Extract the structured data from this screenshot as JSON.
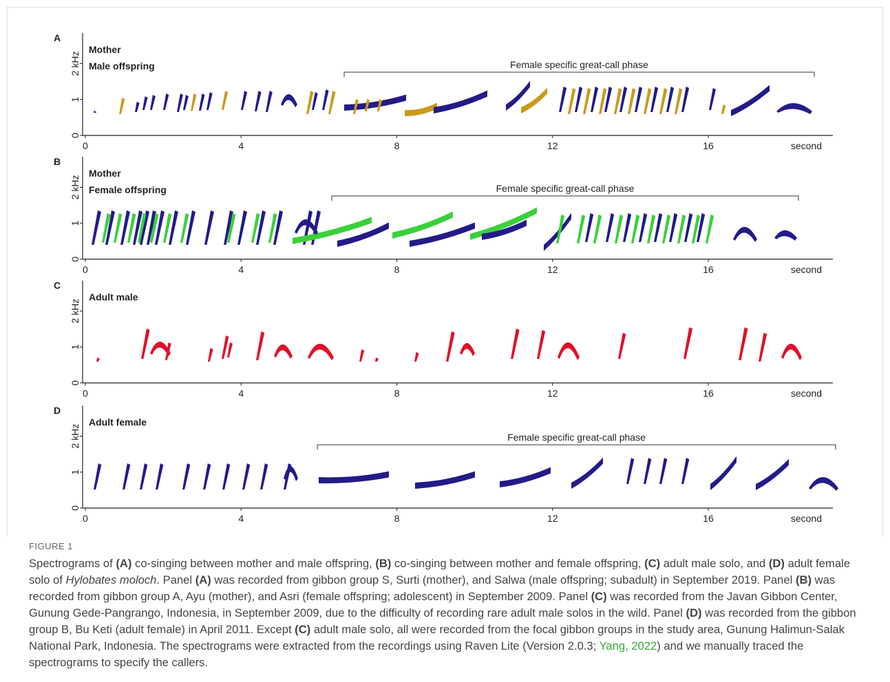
{
  "figure": {
    "panels": [
      {
        "letter": "A",
        "legend": [
          {
            "name": "Mother",
            "color": "#231b88"
          },
          {
            "name": "Male offspring",
            "color": "#c99a1c"
          }
        ],
        "phase_label": "Female specific great-call phase",
        "xlim": [
          -0.07,
          19.2
        ],
        "xticks": [
          0,
          4,
          8,
          12,
          16
        ],
        "x_unit": "second",
        "ylim": [
          0,
          2.85
        ],
        "yticks": [
          0,
          1,
          {
            "value": 2,
            "label": "2 kHz"
          }
        ]
      },
      {
        "letter": "B",
        "legend": [
          {
            "name": "Mother",
            "color": "#231b88"
          },
          {
            "name": "Female offspring",
            "color": "#3bd03b"
          }
        ],
        "phase_label": "Female specific great-call phase",
        "xlim": [
          -0.07,
          19.2
        ],
        "xticks": [
          0,
          4,
          8,
          12,
          16
        ],
        "x_unit": "second",
        "ylim": [
          0,
          2.85
        ],
        "yticks": [
          0,
          1,
          {
            "value": 2,
            "label": "2 kHz"
          }
        ]
      },
      {
        "letter": "C",
        "legend": [
          {
            "name": "Adult male",
            "color": "#e0102a"
          }
        ],
        "xlim": [
          -0.07,
          19.2
        ],
        "xticks": [
          0,
          4,
          8,
          12,
          16
        ],
        "x_unit": "second",
        "ylim": [
          0,
          2.85
        ],
        "yticks": [
          0,
          1,
          {
            "value": 2,
            "label": "2 kHz"
          }
        ]
      },
      {
        "letter": "D",
        "legend": [
          {
            "name": "Adult female",
            "color": "#231b88"
          }
        ],
        "phase_label": "Female specific great-call phase",
        "xlim": [
          -0.07,
          19.2
        ],
        "xticks": [
          0,
          4,
          8,
          12,
          16
        ],
        "x_unit": "second",
        "ylim": [
          0,
          2.85
        ],
        "yticks": [
          0,
          1,
          {
            "value": 2,
            "label": "2 kHz"
          }
        ]
      }
    ],
    "caption": {
      "label": "FIGURE 1",
      "runs": [
        "Spectrograms of ",
        "(A)",
        " co-singing between mother and male offspring, ",
        "(B)",
        " co-singing between mother and female offspring, ",
        "(C)",
        " adult male solo, and ",
        "(D)",
        " adult female solo of ",
        "Hylobates moloch",
        ". Panel ",
        "(A)",
        " was recorded from gibbon group S, Surti (mother), and Salwa (male offspring; subadult) in September 2019. Panel ",
        "(B)",
        " was recorded from gibbon group A, Ayu (mother), and Asri (female offspring; adolescent) in September 2009. Panel ",
        "(C)",
        " was recorded from the Javan Gibbon Center, Gunung Gede-Pangrango, Indonesia, in September 2009, due to the difficulty of recording rare adult male solos in the wild. Panel ",
        "(D)",
        " was recorded from the gibbon group B, Bu Keti (adult female) in April 2011. Except ",
        "(C)",
        " adult male solo, all were recorded from the focal gibbon groups in the study area, Gunung Halimun-Salak National Park, Indonesia. The spectrograms were extracted from the recordings using Raven Lite (Version 2.0.3; ",
        "Yang, 2022",
        ") and we manually traced the spectrograms to specify the callers."
      ]
    }
  }
}
